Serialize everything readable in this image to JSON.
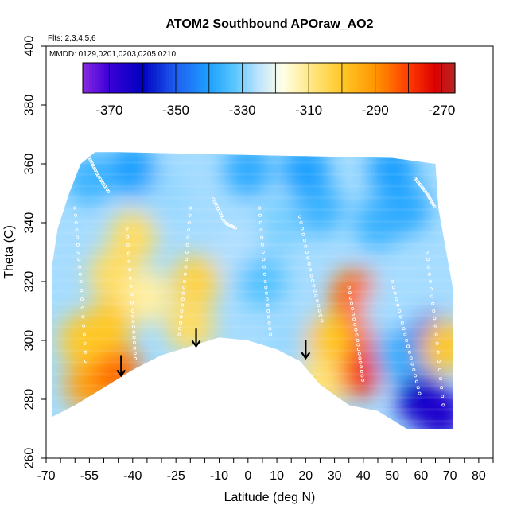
{
  "chart_data": {
    "type": "heatmap",
    "title": "ATOM2 Southbound APOraw_AO2",
    "notes": [
      "Flts: 2,3,4,5,6",
      "MMDD: 0129,0201,0203,0205,0210"
    ],
    "xlabel": "Latitude (deg N)",
    "ylabel": "Theta (C)",
    "xlim": [
      -70,
      85
    ],
    "ylim": [
      260,
      400
    ],
    "x_ticks": [
      -70,
      -65,
      -60,
      -55,
      -50,
      -45,
      -40,
      -35,
      -30,
      -25,
      -20,
      -15,
      -10,
      -5,
      0,
      5,
      10,
      15,
      20,
      25,
      30,
      35,
      40,
      45,
      50,
      55,
      60,
      65,
      70,
      75,
      80,
      85
    ],
    "x_tick_labels": [
      "-70",
      "-55",
      "-40",
      "-25",
      "-10",
      "0",
      "10",
      "20",
      "30",
      "40",
      "50",
      "60",
      "70",
      "80"
    ],
    "x_tick_label_values": [
      -70,
      -55,
      -40,
      -25,
      -10,
      0,
      10,
      20,
      30,
      40,
      50,
      60,
      70,
      80
    ],
    "y_ticks": [
      260,
      280,
      300,
      320,
      340,
      360,
      380,
      400
    ],
    "y_tick_labels": [
      "260",
      "280",
      "300",
      "320",
      "340",
      "360",
      "380",
      "400"
    ],
    "colorbar": {
      "range": [
        -378,
        -266
      ],
      "boundaries": [
        -370,
        -360,
        -350,
        -340,
        -330,
        -320,
        -310,
        -300,
        -290,
        -280,
        -270
      ],
      "labels": [
        "-370",
        "-350",
        "-330",
        "-310",
        "-290",
        "-270"
      ],
      "label_values": [
        -370,
        -350,
        -330,
        -310,
        -290,
        -270
      ],
      "color_stops": [
        {
          "v": -378,
          "c": "#8a2be2"
        },
        {
          "v": -370,
          "c": "#3a00d8"
        },
        {
          "v": -360,
          "c": "#0000c0"
        },
        {
          "v": -350,
          "c": "#1e5ff0"
        },
        {
          "v": -340,
          "c": "#1ea0ff"
        },
        {
          "v": -332,
          "c": "#5cc8ff"
        },
        {
          "v": -326,
          "c": "#b4e0ff"
        },
        {
          "v": -318,
          "c": "#ffffe8"
        },
        {
          "v": -310,
          "c": "#ffe98a"
        },
        {
          "v": -300,
          "c": "#ffc828"
        },
        {
          "v": -290,
          "c": "#ff9600"
        },
        {
          "v": -280,
          "c": "#ff3c00"
        },
        {
          "v": -272,
          "c": "#dc0000"
        },
        {
          "v": -266,
          "c": "#b42828"
        }
      ]
    },
    "field_blobs": [
      {
        "x": -55,
        "y": 285,
        "v": -292
      },
      {
        "x": -46,
        "y": 290,
        "v": -285
      },
      {
        "x": -48,
        "y": 305,
        "v": -300
      },
      {
        "x": -57,
        "y": 300,
        "v": -300
      },
      {
        "x": -47,
        "y": 322,
        "v": -306
      },
      {
        "x": -40,
        "y": 335,
        "v": -306
      },
      {
        "x": -18,
        "y": 320,
        "v": -303
      },
      {
        "x": -20,
        "y": 305,
        "v": -306
      },
      {
        "x": -35,
        "y": 315,
        "v": -312
      },
      {
        "x": -28,
        "y": 350,
        "v": -328
      },
      {
        "x": -55,
        "y": 355,
        "v": -336
      },
      {
        "x": -3,
        "y": 330,
        "v": -326
      },
      {
        "x": 5,
        "y": 320,
        "v": -333
      },
      {
        "x": 15,
        "y": 300,
        "v": -328
      },
      {
        "x": 12,
        "y": 340,
        "v": -330
      },
      {
        "x": 25,
        "y": 345,
        "v": -336
      },
      {
        "x": 35,
        "y": 300,
        "v": -282
      },
      {
        "x": 38,
        "y": 290,
        "v": -278
      },
      {
        "x": 37,
        "y": 315,
        "v": -285
      },
      {
        "x": 28,
        "y": 300,
        "v": -300
      },
      {
        "x": 25,
        "y": 285,
        "v": -308
      },
      {
        "x": 48,
        "y": 310,
        "v": -327
      },
      {
        "x": 52,
        "y": 295,
        "v": -336
      },
      {
        "x": 60,
        "y": 280,
        "v": -362
      },
      {
        "x": 64,
        "y": 300,
        "v": -352
      },
      {
        "x": 67,
        "y": 275,
        "v": -365
      },
      {
        "x": 68,
        "y": 298,
        "v": -300
      },
      {
        "x": 45,
        "y": 340,
        "v": -336
      },
      {
        "x": 55,
        "y": 345,
        "v": -338
      },
      {
        "x": 50,
        "y": 358,
        "v": -340
      },
      {
        "x": 20,
        "y": 358,
        "v": -340
      },
      {
        "x": 0,
        "y": 358,
        "v": -338
      },
      {
        "x": -40,
        "y": 358,
        "v": -340
      }
    ],
    "background_value": -327,
    "domain_top": [
      {
        "x": -66,
        "y": 338
      },
      {
        "x": -62,
        "y": 350
      },
      {
        "x": -58,
        "y": 360
      },
      {
        "x": -53,
        "y": 364
      },
      {
        "x": -45,
        "y": 364
      },
      {
        "x": 0,
        "y": 363
      },
      {
        "x": 50,
        "y": 362
      },
      {
        "x": 65,
        "y": 360
      }
    ],
    "domain_right": [
      {
        "x": 65,
        "y": 360
      },
      {
        "x": 66,
        "y": 345
      },
      {
        "x": 71,
        "y": 318
      },
      {
        "x": 71,
        "y": 270
      }
    ],
    "domain_bottom": [
      {
        "x": 71,
        "y": 270
      },
      {
        "x": 55,
        "y": 270
      },
      {
        "x": 45,
        "y": 276
      },
      {
        "x": 35,
        "y": 278
      },
      {
        "x": 25,
        "y": 285
      },
      {
        "x": 18,
        "y": 293
      },
      {
        "x": 10,
        "y": 297
      },
      {
        "x": 0,
        "y": 300
      },
      {
        "x": -10,
        "y": 301
      },
      {
        "x": -20,
        "y": 298
      },
      {
        "x": -30,
        "y": 295
      },
      {
        "x": -40,
        "y": 290
      },
      {
        "x": -45,
        "y": 287
      },
      {
        "x": -50,
        "y": 284
      },
      {
        "x": -60,
        "y": 278
      },
      {
        "x": -68,
        "y": 274
      }
    ],
    "domain_left": [
      {
        "x": -68,
        "y": 274
      },
      {
        "x": -68,
        "y": 325
      },
      {
        "x": -66,
        "y": 338
      }
    ],
    "arrows": [
      {
        "x": -44,
        "y_top": 295,
        "y_bottom": 288
      },
      {
        "x": -18,
        "y_top": 304,
        "y_bottom": 298
      },
      {
        "x": 20,
        "y_top": 300,
        "y_bottom": 294
      }
    ],
    "sample_tracks": [
      [
        {
          "x": -60,
          "y": 345
        },
        {
          "x": -58,
          "y": 320
        },
        {
          "x": -56,
          "y": 290
        }
      ],
      [
        {
          "x": -42,
          "y": 338
        },
        {
          "x": -40,
          "y": 310
        },
        {
          "x": -39,
          "y": 292
        }
      ],
      [
        {
          "x": -20,
          "y": 345
        },
        {
          "x": -22,
          "y": 320
        },
        {
          "x": -24,
          "y": 300
        }
      ],
      [
        {
          "x": -12,
          "y": 348
        },
        {
          "x": -8,
          "y": 340
        },
        {
          "x": -4,
          "y": 338
        }
      ],
      [
        {
          "x": 4,
          "y": 345
        },
        {
          "x": 6,
          "y": 320
        },
        {
          "x": 8,
          "y": 300
        }
      ],
      [
        {
          "x": 18,
          "y": 342
        },
        {
          "x": 22,
          "y": 322
        },
        {
          "x": 26,
          "y": 305
        }
      ],
      [
        {
          "x": 35,
          "y": 318
        },
        {
          "x": 38,
          "y": 300
        },
        {
          "x": 40,
          "y": 285
        }
      ],
      [
        {
          "x": 50,
          "y": 320
        },
        {
          "x": 55,
          "y": 300
        },
        {
          "x": 60,
          "y": 280
        }
      ],
      [
        {
          "x": 62,
          "y": 330
        },
        {
          "x": 65,
          "y": 305
        },
        {
          "x": 68,
          "y": 275
        }
      ],
      [
        {
          "x": 58,
          "y": 355
        },
        {
          "x": 62,
          "y": 350
        },
        {
          "x": 65,
          "y": 345
        }
      ],
      [
        {
          "x": -55,
          "y": 362
        },
        {
          "x": -52,
          "y": 356
        },
        {
          "x": -48,
          "y": 350
        }
      ]
    ],
    "track_marker_color": "#ffffff",
    "arrow_color": "#000000",
    "grid": false
  }
}
